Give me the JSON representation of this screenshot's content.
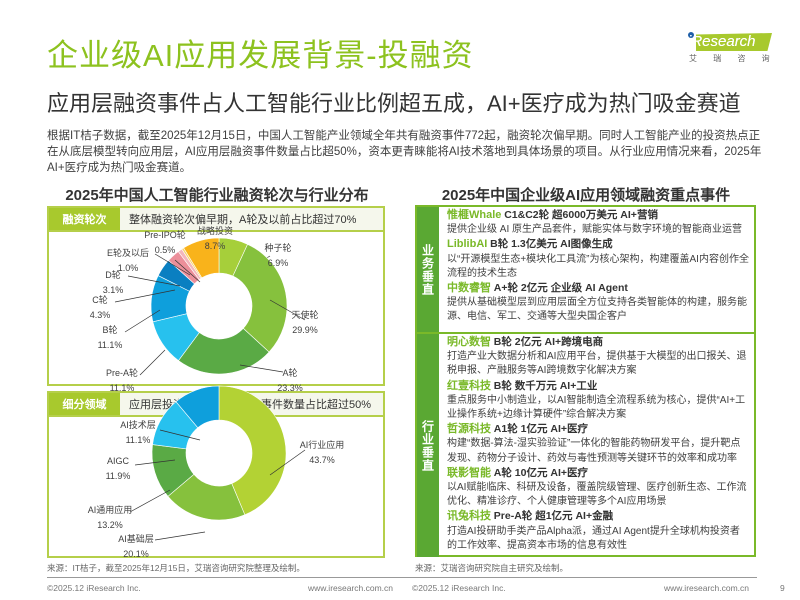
{
  "header": {
    "title": "企业级AI应用发展背景-投融资",
    "subtitle": "应用层融资事件占人工智能行业比例超五成，AI+医疗成为热门吸金赛道",
    "logo_text": "iResearch",
    "logo_cn": "艾 瑞 咨 询",
    "brand_color": "#8dc21f"
  },
  "intro": "根据IT桔子数据，截至2025年12月15日，中国人工智能产业领域全年共有融资事件772起，融资轮次偏早期。同时人工智能产业的投资热点正在从底层模型转向应用层，AI应用层融资事件数量占比超50%，资本更青睐能将AI技术落地到具体场景的项目。从行业应用情况来看，2025年AI+医疗成为热门吸金赛道。",
  "left": {
    "title": "2025年中国人工智能行业融资轮次与行业分布",
    "box1": {
      "tag": "融资轮次",
      "desc": "整体融资轮次偏早期，A轮及以前占比超过70%"
    },
    "box2": {
      "tag": "细分领域",
      "desc": "应用层投资热情高涨，融资事件数量占比超过50%"
    },
    "source": "来源：IT桔子，截至2025年12月15日，艾瑞咨询研究院整理及绘制。"
  },
  "chart_data": [
    {
      "type": "pie",
      "donut": true,
      "title": "融资轮次",
      "unit": "%",
      "slices": [
        {
          "label": "种子轮",
          "value": 6.9,
          "display": "6.9%",
          "color": "#a6cf3a"
        },
        {
          "label": "天使轮",
          "value": 29.9,
          "display": "29.9%",
          "color": "#86c13d"
        },
        {
          "label": "A轮",
          "value": 23.3,
          "display": "23.3%",
          "color": "#5aaa45"
        },
        {
          "label": "Pre-A轮",
          "value": 11.1,
          "display": "11.1%",
          "color": "#27c1ee"
        },
        {
          "label": "B轮",
          "value": 11.1,
          "display": "11.1%",
          "color": "#0e9fdc"
        },
        {
          "label": "C轮",
          "value": 4.3,
          "display": "4.3%",
          "color": "#0a7fc1"
        },
        {
          "label": "D轮",
          "value": 3.1,
          "display": "3.1%",
          "color": "#ec8f9a"
        },
        {
          "label": "E轮及以后",
          "value": 1.0,
          "display": "1.0%",
          "color": "#f3b6bd"
        },
        {
          "label": "Pre-IPO轮",
          "value": 0.5,
          "display": "0.5%",
          "color": "#f7d36b"
        },
        {
          "label": "战略投资",
          "value": 8.7,
          "display": "8.7%",
          "color": "#f9b31b"
        }
      ]
    },
    {
      "type": "pie",
      "donut": true,
      "title": "细分领域",
      "unit": "%",
      "slices": [
        {
          "label": "AI行业应用",
          "value": 43.7,
          "display": "43.7%",
          "color": "#b3d234"
        },
        {
          "label": "AI基础层",
          "value": 20.1,
          "display": "20.1%",
          "color": "#86c13d"
        },
        {
          "label": "AI通用应用",
          "value": 13.2,
          "display": "13.2%",
          "color": "#5aaa45"
        },
        {
          "label": "AIGC",
          "value": 11.9,
          "display": "11.9%",
          "color": "#27c1ee"
        },
        {
          "label": "AI技术层",
          "value": 11.1,
          "display": "11.1%",
          "color": "#0e9fdc"
        }
      ]
    }
  ],
  "right": {
    "title": "2025年中国企业级AI应用领域融资重点事件",
    "sections": [
      {
        "tag": "业务垂直",
        "events": [
          {
            "name": "惟榧Whale",
            "detail": "C1&C2轮 超6000万美元 AI+营销",
            "desc": "提供企业级 AI 原生产品套件，赋能实体与数字环境的智能商业运营"
          },
          {
            "name": "LiblibAI",
            "detail": "B轮 1.3亿美元 AI图像生成",
            "desc": "以“开源模型生态+模块化工具流”为核心架构，构建覆盖AI内容创作全流程的技术生态"
          },
          {
            "name": "中数睿智",
            "detail": "A+轮 2亿元 企业级 AI Agent",
            "desc": "提供从基础模型层到应用层面全方位支持各类智能体的构建，服务能源、电信、军工、交通等大型央国企客户"
          }
        ]
      },
      {
        "tag": "行业垂直",
        "events": [
          {
            "name": "明心数智",
            "detail": "B轮 2亿元 AI+跨境电商",
            "desc": "打造产业大数据分析和AI应用平台，提供基于大模型的出口报关、退税申报、产融服务等AI跨境数字化解决方案"
          },
          {
            "name": "红壹科技",
            "detail": "B轮 数千万元 AI+工业",
            "desc": "重点服务中小制造业，以AI智能制造全流程系统为核心，提供“AI+工业操作系统+边缘计算硬件”综合解决方案"
          },
          {
            "name": "哲源科技",
            "detail": "A1轮 1亿元 AI+医疗",
            "desc": "构建“数据-算法-湿实验验证”一体化的智能药物研发平台，提升靶点发现、药物分子设计、药效与毒性预测等关键环节的效率和成功率"
          },
          {
            "name": "联影智能",
            "detail": "A轮 10亿元 AI+医疗",
            "desc": "以AI赋能临床、科研及设备，覆盖院级管理、医疗创新生态、工作流优化、精准诊疗、个人健康管理等多个AI应用场景"
          },
          {
            "name": "讯兔科技",
            "detail": "Pre-A轮  超1亿元 AI+金融",
            "desc": "打造AI投研助手类产品Alpha派，通过AI Agent提升全球机构投资者的工作效率、提高资本市场的信息有效性"
          }
        ]
      }
    ],
    "source": "来源：艾瑞咨询研究院自主研究及绘制。"
  },
  "footer": {
    "copyright": "©2025.12 iResearch Inc.",
    "url": "www.iresearch.com.cn",
    "page": "9"
  }
}
